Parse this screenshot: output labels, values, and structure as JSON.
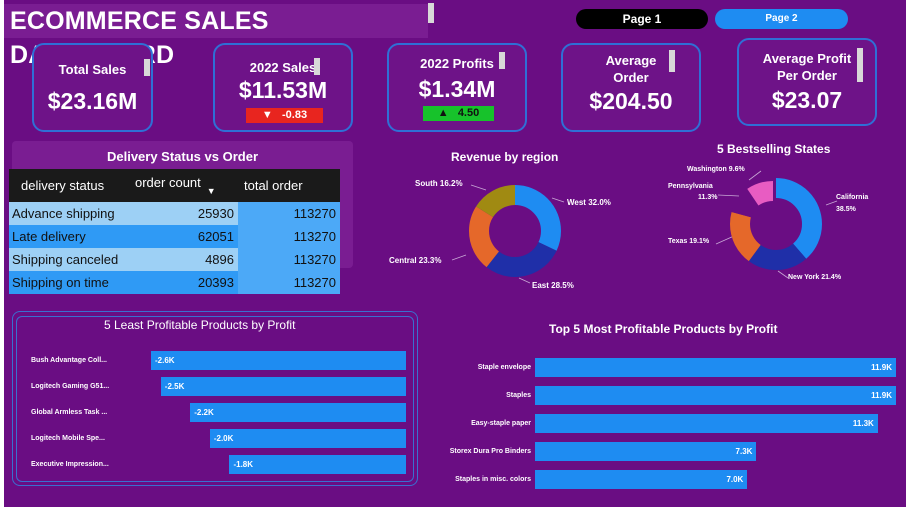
{
  "header": {
    "title": "ECOMMERCE SALES DASHBOARD"
  },
  "pages": {
    "page1": "Page 1",
    "page2": "Page 2"
  },
  "kpis": {
    "total_sales": {
      "label": "Total Sales",
      "value": "$23.16M"
    },
    "sales_2022": {
      "label": "2022 Sales",
      "value": "$11.53M",
      "delta": "-0.83",
      "delta_color": "#e8251f"
    },
    "profits_2022": {
      "label": "2022 Profits",
      "value": "$1.34M",
      "delta": "4.50",
      "delta_color": "#17c22b"
    },
    "avg_order": {
      "label_line1": "Average",
      "label_line2": "Order",
      "value": "$204.50"
    },
    "avg_profit": {
      "label_line1": "Average Profit",
      "label_line2": "Per Order",
      "value": "$23.07"
    }
  },
  "delivery_table": {
    "title": "Delivery Status vs Order",
    "columns": [
      "delivery status",
      "order count",
      "total order"
    ],
    "rows": [
      {
        "status": "Advance shipping",
        "count": "25930",
        "total": "113270"
      },
      {
        "status": "Late delivery",
        "count": "62051",
        "total": "113270"
      },
      {
        "status": "Shipping canceled",
        "count": "4896",
        "total": "113270"
      },
      {
        "status": "Shipping on time",
        "count": "20393",
        "total": "113270"
      }
    ]
  },
  "charts": {
    "region": {
      "title": "Revenue by region",
      "labels": [
        "West 32.0%",
        "East 28.5%",
        "Central 23.3%",
        "South 16.2%"
      ]
    },
    "states": {
      "title": "5 Bestselling States",
      "labels": [
        "California",
        "38.5%",
        "New York 21.4%",
        "Texas 19.1%",
        "Pennsylvania",
        "11.3%",
        "Washington 9.6%"
      ]
    },
    "least": {
      "title": "5 Least Profitable Products by Profit",
      "labels": [
        "Bush Advantage Coll...",
        "Logitech Gaming G51...",
        "Global Armless Task ...",
        "Logitech Mobile Spe...",
        "Executive Impression..."
      ],
      "values": [
        "-2.6K",
        "-2.5K",
        "-2.2K",
        "-2.0K",
        "-1.8K"
      ]
    },
    "top": {
      "title": "Top 5 Most Profitable Products by Profit",
      "labels": [
        "Staple envelope",
        "Staples",
        "Easy-staple paper",
        "Storex Dura Pro Binders",
        "Staples in misc. colors"
      ],
      "values": [
        "11.9K",
        "11.9K",
        "11.3K",
        "7.3K",
        "7.0K"
      ]
    }
  },
  "chart_data": [
    {
      "type": "pie",
      "title": "Revenue by region",
      "categories": [
        "West",
        "East",
        "Central",
        "South"
      ],
      "values": [
        32.0,
        28.5,
        23.3,
        16.2
      ],
      "colors": [
        "#1e8cf2",
        "#1f2fa8",
        "#e5682a",
        "#a08a12"
      ]
    },
    {
      "type": "pie",
      "title": "5 Bestselling States",
      "categories": [
        "California",
        "New York",
        "Texas",
        "Pennsylvania",
        "Washington"
      ],
      "values": [
        38.5,
        21.4,
        19.1,
        11.3,
        9.6
      ],
      "colors": [
        "#1e8cf2",
        "#1f2fa8",
        "#e5682a",
        "#6a0d83",
        "#e85cc2"
      ]
    },
    {
      "type": "bar",
      "title": "5 Least Profitable Products by Profit",
      "categories": [
        "Bush Advantage Coll...",
        "Logitech Gaming G51...",
        "Global Armless Task ...",
        "Logitech Mobile Spe...",
        "Executive Impression..."
      ],
      "values": [
        -2.6,
        -2.5,
        -2.2,
        -2.0,
        -1.8
      ]
    },
    {
      "type": "bar",
      "title": "Top 5 Most Profitable Products by Profit",
      "categories": [
        "Staple envelope",
        "Staples",
        "Easy-staple paper",
        "Storex Dura Pro Binders",
        "Staples in misc. colors"
      ],
      "values": [
        11.9,
        11.9,
        11.3,
        7.3,
        7.0
      ]
    }
  ]
}
